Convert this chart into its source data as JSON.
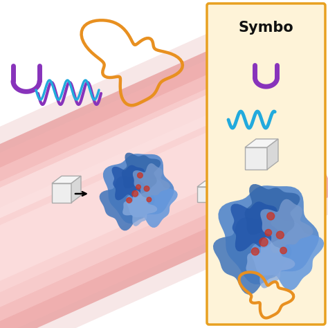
{
  "bg_color": "#ffffff",
  "legend_bg": "#fef3d8",
  "legend_border": "#e8a020",
  "legend_title": "Symbo",
  "purple_color": "#8833bb",
  "cyan_color": "#22aadd",
  "orange_color": "#e89020",
  "vessel_outer": "#eeaaaa",
  "vessel_mid": "#f5c0c0",
  "vessel_inner": "#fad5d5",
  "vessel_bright": "#fce8e8",
  "vessel_edge": "#d88888"
}
